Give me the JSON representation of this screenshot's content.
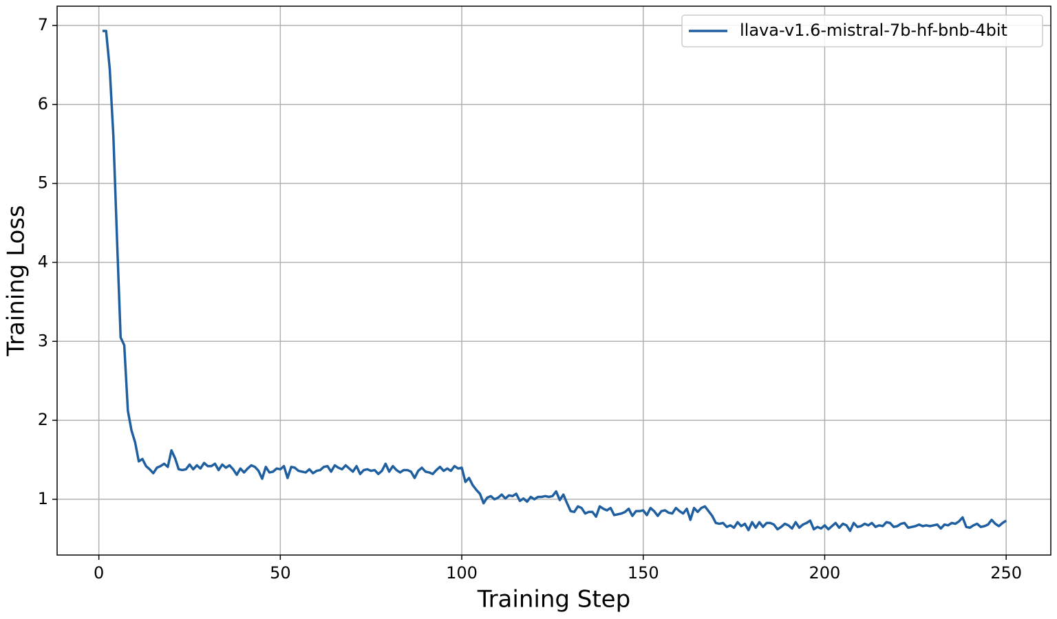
{
  "chart_data": {
    "type": "line",
    "xlabel": "Training Step",
    "ylabel": "Training Loss",
    "xlim": [
      -11.5,
      262.3
    ],
    "ylim": [
      0.294,
      7.244
    ],
    "xticks": [
      0,
      50,
      100,
      150,
      200,
      250
    ],
    "yticks": [
      1,
      2,
      3,
      4,
      5,
      6,
      7
    ],
    "grid": true,
    "legend": "upper right",
    "x": [
      1,
      2,
      3,
      4,
      5,
      6,
      7,
      8,
      9,
      10,
      11,
      12,
      13,
      14,
      15,
      16,
      17,
      18,
      19,
      20,
      21,
      22,
      23,
      24,
      25,
      26,
      27,
      28,
      29,
      30,
      31,
      32,
      33,
      34,
      35,
      36,
      37,
      38,
      39,
      40,
      41,
      42,
      43,
      44,
      45,
      46,
      47,
      48,
      49,
      50,
      51,
      52,
      53,
      54,
      55,
      56,
      57,
      58,
      59,
      60,
      61,
      62,
      63,
      64,
      65,
      66,
      67,
      68,
      69,
      70,
      71,
      72,
      73,
      74,
      75,
      76,
      77,
      78,
      79,
      80,
      81,
      82,
      83,
      84,
      85,
      86,
      87,
      88,
      89,
      90,
      91,
      92,
      93,
      94,
      95,
      96,
      97,
      98,
      99,
      100,
      101,
      102,
      103,
      104,
      105,
      106,
      107,
      108,
      109,
      110,
      111,
      112,
      113,
      114,
      115,
      116,
      117,
      118,
      119,
      120,
      121,
      122,
      123,
      124,
      125,
      126,
      127,
      128,
      129,
      130,
      131,
      132,
      133,
      134,
      135,
      136,
      137,
      138,
      139,
      140,
      141,
      142,
      143,
      144,
      145,
      146,
      147,
      148,
      149,
      150,
      151,
      152,
      153,
      154,
      155,
      156,
      157,
      158,
      159,
      160,
      161,
      162,
      163,
      164,
      165,
      166,
      167,
      168,
      169,
      170,
      171,
      172,
      173,
      174,
      175,
      176,
      177,
      178,
      179,
      180,
      181,
      182,
      183,
      184,
      185,
      186,
      187,
      188,
      189,
      190,
      191,
      192,
      193,
      194,
      195,
      196,
      197,
      198,
      199,
      200,
      201,
      202,
      203,
      204,
      205,
      206,
      207,
      208,
      209,
      210,
      211,
      212,
      213,
      214,
      215,
      216,
      217,
      218,
      219,
      220,
      221,
      222,
      223,
      224,
      225,
      226,
      227,
      228,
      229,
      230,
      231,
      232,
      233,
      234,
      235,
      236,
      237,
      238,
      239,
      240,
      241,
      242,
      243,
      244,
      245,
      246,
      247,
      248,
      249,
      250
    ],
    "series": [
      {
        "name": "llava-v1.6-mistral-7b-hf-bnb-4bit",
        "color": "#1f5f9f",
        "values": [
          6.93,
          6.93,
          6.45,
          5.6,
          4.3,
          3.05,
          2.95,
          2.12,
          1.87,
          1.72,
          1.48,
          1.51,
          1.42,
          1.38,
          1.33,
          1.4,
          1.42,
          1.45,
          1.41,
          1.62,
          1.52,
          1.38,
          1.37,
          1.38,
          1.44,
          1.38,
          1.43,
          1.39,
          1.46,
          1.42,
          1.42,
          1.45,
          1.37,
          1.44,
          1.4,
          1.43,
          1.38,
          1.31,
          1.39,
          1.34,
          1.39,
          1.43,
          1.41,
          1.36,
          1.26,
          1.41,
          1.34,
          1.35,
          1.39,
          1.38,
          1.42,
          1.27,
          1.41,
          1.4,
          1.36,
          1.35,
          1.34,
          1.38,
          1.33,
          1.36,
          1.37,
          1.41,
          1.42,
          1.35,
          1.43,
          1.4,
          1.38,
          1.43,
          1.39,
          1.35,
          1.42,
          1.32,
          1.37,
          1.38,
          1.36,
          1.37,
          1.32,
          1.36,
          1.45,
          1.35,
          1.42,
          1.37,
          1.34,
          1.37,
          1.37,
          1.35,
          1.27,
          1.36,
          1.4,
          1.35,
          1.34,
          1.32,
          1.37,
          1.41,
          1.36,
          1.39,
          1.36,
          1.42,
          1.39,
          1.4,
          1.22,
          1.27,
          1.18,
          1.12,
          1.07,
          0.95,
          1.02,
          1.04,
          1.0,
          1.02,
          1.06,
          1.01,
          1.05,
          1.04,
          1.07,
          0.98,
          1.01,
          0.97,
          1.03,
          1.0,
          1.03,
          1.03,
          1.04,
          1.03,
          1.04,
          1.1,
          0.99,
          1.06,
          0.95,
          0.85,
          0.84,
          0.91,
          0.89,
          0.82,
          0.84,
          0.84,
          0.78,
          0.91,
          0.88,
          0.86,
          0.89,
          0.8,
          0.81,
          0.82,
          0.84,
          0.88,
          0.79,
          0.85,
          0.85,
          0.86,
          0.8,
          0.89,
          0.85,
          0.79,
          0.85,
          0.86,
          0.83,
          0.82,
          0.89,
          0.85,
          0.82,
          0.88,
          0.74,
          0.89,
          0.84,
          0.89,
          0.91,
          0.85,
          0.79,
          0.7,
          0.69,
          0.7,
          0.65,
          0.67,
          0.64,
          0.71,
          0.66,
          0.69,
          0.61,
          0.71,
          0.64,
          0.71,
          0.65,
          0.7,
          0.7,
          0.68,
          0.62,
          0.65,
          0.69,
          0.67,
          0.63,
          0.71,
          0.64,
          0.68,
          0.7,
          0.73,
          0.62,
          0.65,
          0.63,
          0.67,
          0.62,
          0.66,
          0.7,
          0.64,
          0.69,
          0.67,
          0.6,
          0.7,
          0.65,
          0.66,
          0.69,
          0.67,
          0.7,
          0.65,
          0.67,
          0.66,
          0.71,
          0.7,
          0.65,
          0.66,
          0.69,
          0.7,
          0.64,
          0.65,
          0.66,
          0.68,
          0.66,
          0.67,
          0.66,
          0.67,
          0.68,
          0.63,
          0.68,
          0.67,
          0.7,
          0.69,
          0.72,
          0.77,
          0.65,
          0.64,
          0.67,
          0.69,
          0.65,
          0.66,
          0.68,
          0.74,
          0.69,
          0.66,
          0.7,
          0.73
        ]
      }
    ]
  }
}
